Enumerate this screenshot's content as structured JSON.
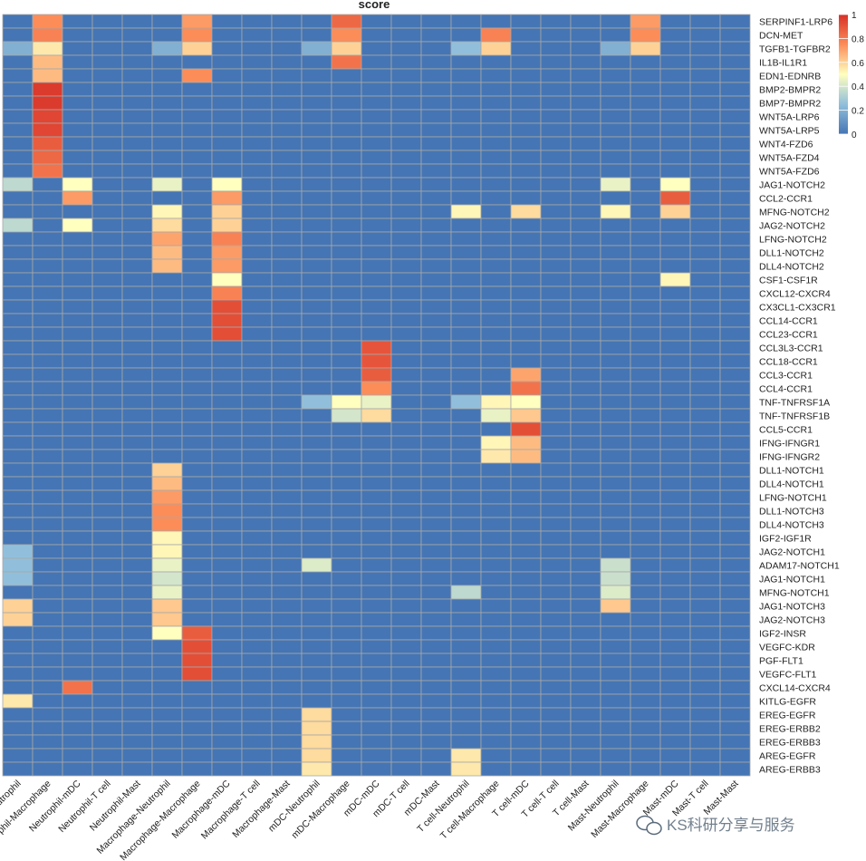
{
  "chart_data": {
    "type": "heatmap",
    "title": "score",
    "columns": [
      "Neutrophil-Neutrophil",
      "Neutrophil-Macrophage",
      "Neutrophil-mDC",
      "Neutrophil-T cell",
      "Neutrophil-Mast",
      "Macrophage-Neutrophil",
      "Macrophage-Macrophage",
      "Macrophage-mDC",
      "Macrophage-T cell",
      "Macrophage-Mast",
      "mDC-Neutrophil",
      "mDC-Macrophage",
      "mDC-mDC",
      "mDC-T cell",
      "mDC-Mast",
      "T cell-Neutrophil",
      "T cell-Macrophage",
      "T cell-mDC",
      "T cell-T cell",
      "T cell-Mast",
      "Mast-Neutrophil",
      "Mast-Macrophage",
      "Mast-mDC",
      "Mast-T cell",
      "Mast-Mast"
    ],
    "column_labels": [
      "phil-Neutrophil",
      "phil-Macrophage",
      "Neutrophil-mDC",
      "Neutrophil-T cell",
      "Neutrophil-Mast",
      "Macrophage-Neutrophil",
      "Macrophage-Macrophage",
      "Macrophage-mDC",
      "Macrophage-T cell",
      "Macrophage-Mast",
      "mDC-Neutrophil",
      "mDC-Macrophage",
      "mDC-mDC",
      "mDC-T cell",
      "mDC-Mast",
      "T cell-Neutrophil",
      "T cell-Macrophage",
      "T cell-mDC",
      "T cell-T cell",
      "T cell-Mast",
      "Mast-Neutrophil",
      "Mast-Macrophage",
      "Mast-mDC",
      "Mast-T cell",
      "Mast-Mast"
    ],
    "rows": [
      "SERPINF1-LRP6",
      "DCN-MET",
      "TGFB1-TGFBR2",
      "IL1B-IL1R1",
      "EDN1-EDNRB",
      "BMP2-BMPR2",
      "BMP7-BMPR2",
      "WNT5A-LRP6",
      "WNT5A-LRP5",
      "WNT4-FZD6",
      "WNT5A-FZD4",
      "WNT5A-FZD6",
      "JAG1-NOTCH2",
      "CCL2-CCR1",
      "MFNG-NOTCH2",
      "JAG2-NOTCH2",
      "LFNG-NOTCH2",
      "DLL1-NOTCH2",
      "DLL4-NOTCH2",
      "CSF1-CSF1R",
      "CXCL12-CXCR4",
      "CX3CL1-CX3CR1",
      "CCL14-CCR1",
      "CCL23-CCR1",
      "CCL3L3-CCR1",
      "CCL18-CCR1",
      "CCL3-CCR1",
      "CCL4-CCR1",
      "TNF-TNFRSF1A",
      "TNF-TNFRSF1B",
      "CCL5-CCR1",
      "IFNG-IFNGR1",
      "IFNG-IFNGR2",
      "DLL1-NOTCH1",
      "DLL4-NOTCH1",
      "LFNG-NOTCH1",
      "DLL1-NOTCH3",
      "DLL4-NOTCH3",
      "IGF2-IGF1R",
      "JAG2-NOTCH1",
      "ADAM17-NOTCH1",
      "JAG1-NOTCH1",
      "MFNG-NOTCH1",
      "JAG1-NOTCH3",
      "JAG2-NOTCH3",
      "IGF2-INSR",
      "VEGFC-KDR",
      "PGF-FLT1",
      "VEGFC-FLT1",
      "CXCL14-CXCR4",
      "KITLG-EGFR",
      "EREG-EGFR",
      "EREG-ERBB2",
      "EREG-ERBB3",
      "AREG-EGFR",
      "AREG-ERBB3"
    ],
    "cells": [
      [
        0,
        1,
        0.75
      ],
      [
        0,
        6,
        0.72
      ],
      [
        0,
        11,
        0.85
      ],
      [
        0,
        21,
        0.72
      ],
      [
        1,
        1,
        0.78
      ],
      [
        1,
        6,
        0.75
      ],
      [
        1,
        11,
        0.75
      ],
      [
        1,
        16,
        0.78
      ],
      [
        1,
        21,
        0.75
      ],
      [
        2,
        0,
        0.2
      ],
      [
        2,
        1,
        0.55
      ],
      [
        2,
        5,
        0.2
      ],
      [
        2,
        6,
        0.6
      ],
      [
        2,
        10,
        0.2
      ],
      [
        2,
        11,
        0.6
      ],
      [
        2,
        15,
        0.25
      ],
      [
        2,
        16,
        0.6
      ],
      [
        2,
        20,
        0.2
      ],
      [
        2,
        21,
        0.6
      ],
      [
        3,
        1,
        0.65
      ],
      [
        3,
        11,
        0.82
      ],
      [
        4,
        1,
        0.65
      ],
      [
        4,
        6,
        0.75
      ],
      [
        5,
        1,
        0.97
      ],
      [
        6,
        1,
        0.97
      ],
      [
        7,
        1,
        0.94
      ],
      [
        8,
        1,
        0.94
      ],
      [
        9,
        1,
        0.88
      ],
      [
        10,
        1,
        0.85
      ],
      [
        11,
        1,
        0.82
      ],
      [
        12,
        0,
        0.35
      ],
      [
        12,
        2,
        0.5
      ],
      [
        12,
        5,
        0.45
      ],
      [
        12,
        7,
        0.5
      ],
      [
        12,
        20,
        0.45
      ],
      [
        12,
        22,
        0.5
      ],
      [
        13,
        2,
        0.72
      ],
      [
        13,
        7,
        0.72
      ],
      [
        13,
        22,
        0.88
      ],
      [
        14,
        5,
        0.52
      ],
      [
        14,
        7,
        0.6
      ],
      [
        14,
        15,
        0.52
      ],
      [
        14,
        17,
        0.58
      ],
      [
        14,
        20,
        0.52
      ],
      [
        14,
        22,
        0.6
      ],
      [
        15,
        0,
        0.35
      ],
      [
        15,
        2,
        0.5
      ],
      [
        15,
        5,
        0.58
      ],
      [
        15,
        7,
        0.6
      ],
      [
        16,
        5,
        0.7
      ],
      [
        16,
        7,
        0.78
      ],
      [
        17,
        5,
        0.65
      ],
      [
        17,
        7,
        0.72
      ],
      [
        18,
        5,
        0.65
      ],
      [
        18,
        7,
        0.72
      ],
      [
        19,
        7,
        0.5
      ],
      [
        19,
        22,
        0.52
      ],
      [
        20,
        7,
        0.78
      ],
      [
        21,
        7,
        0.92
      ],
      [
        22,
        7,
        0.92
      ],
      [
        23,
        7,
        0.92
      ],
      [
        24,
        12,
        0.9
      ],
      [
        25,
        12,
        0.9
      ],
      [
        26,
        12,
        0.88
      ],
      [
        26,
        17,
        0.7
      ],
      [
        27,
        12,
        0.75
      ],
      [
        27,
        17,
        0.82
      ],
      [
        28,
        10,
        0.25
      ],
      [
        28,
        11,
        0.5
      ],
      [
        28,
        12,
        0.45
      ],
      [
        28,
        15,
        0.25
      ],
      [
        28,
        16,
        0.52
      ],
      [
        28,
        17,
        0.5
      ],
      [
        29,
        11,
        0.4
      ],
      [
        29,
        12,
        0.58
      ],
      [
        29,
        16,
        0.45
      ],
      [
        29,
        17,
        0.62
      ],
      [
        30,
        17,
        0.92
      ],
      [
        31,
        16,
        0.52
      ],
      [
        31,
        17,
        0.65
      ],
      [
        32,
        16,
        0.55
      ],
      [
        32,
        17,
        0.65
      ],
      [
        33,
        5,
        0.6
      ],
      [
        34,
        5,
        0.65
      ],
      [
        35,
        5,
        0.72
      ],
      [
        36,
        5,
        0.75
      ],
      [
        37,
        5,
        0.75
      ],
      [
        38,
        5,
        0.52
      ],
      [
        39,
        0,
        0.25
      ],
      [
        39,
        5,
        0.52
      ],
      [
        40,
        0,
        0.25
      ],
      [
        40,
        5,
        0.45
      ],
      [
        40,
        10,
        0.42
      ],
      [
        40,
        20,
        0.38
      ],
      [
        41,
        0,
        0.25
      ],
      [
        41,
        5,
        0.4
      ],
      [
        41,
        20,
        0.38
      ],
      [
        42,
        5,
        0.45
      ],
      [
        42,
        15,
        0.35
      ],
      [
        42,
        20,
        0.42
      ],
      [
        43,
        0,
        0.6
      ],
      [
        43,
        5,
        0.62
      ],
      [
        43,
        20,
        0.62
      ],
      [
        44,
        0,
        0.6
      ],
      [
        44,
        5,
        0.62
      ],
      [
        45,
        5,
        0.5
      ],
      [
        45,
        6,
        0.88
      ],
      [
        46,
        6,
        0.92
      ],
      [
        47,
        6,
        0.92
      ],
      [
        48,
        6,
        0.92
      ],
      [
        49,
        2,
        0.82
      ],
      [
        50,
        0,
        0.55
      ],
      [
        51,
        10,
        0.58
      ],
      [
        52,
        10,
        0.58
      ],
      [
        53,
        10,
        0.58
      ],
      [
        54,
        10,
        0.58
      ],
      [
        54,
        15,
        0.55
      ],
      [
        55,
        10,
        0.55
      ],
      [
        55,
        15,
        0.55
      ]
    ],
    "default_value": 0,
    "colorbar": {
      "range": [
        0,
        1
      ],
      "ticks": [
        "1",
        "0.8",
        "0.6",
        "0.4",
        "0.2",
        "0"
      ]
    },
    "colors": {
      "low": "#4575b4",
      "mid": "#ffffbf",
      "high": "#d73027",
      "grid": "#a8a8a8"
    }
  },
  "watermark": "KS科研分享与服务"
}
